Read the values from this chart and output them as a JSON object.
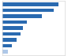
{
  "values": [
    760,
    695,
    540,
    330,
    285,
    250,
    195,
    130,
    80
  ],
  "bar_colors": [
    "#2a6ab0",
    "#2a6ab0",
    "#2a6ab0",
    "#2a6ab0",
    "#2a6ab0",
    "#2a6ab0",
    "#2a6ab0",
    "#2a6ab0",
    "#aec8e8"
  ],
  "background_color": "#ffffff",
  "plot_bg": "#ffffff",
  "xlim": [
    0,
    850
  ],
  "border_color": "#cccccc"
}
